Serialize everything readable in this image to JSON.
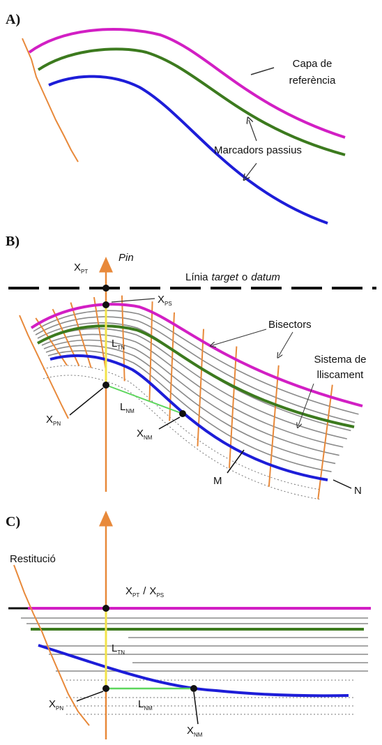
{
  "panel_a": {
    "label": "A)",
    "reference_layer": [
      "Capa de",
      "referència"
    ],
    "passive_markers": "Marcadors passius"
  },
  "panel_b": {
    "label": "B)",
    "pin": "Pin",
    "x_pt": {
      "base": "X",
      "sub": "PT"
    },
    "datum_line": [
      "Línia",
      "target",
      "o",
      "datum"
    ],
    "x_ps": {
      "base": "X",
      "sub": "PS"
    },
    "bisectors": "Bisectors",
    "slip_system": [
      "Sistema de",
      "lliscament"
    ],
    "l_tn": {
      "base": "L",
      "sub": "TN"
    },
    "l_nm": {
      "base": "L",
      "sub": "NM"
    },
    "x_pn": {
      "base": "X",
      "sub": "PN"
    },
    "x_nm": {
      "base": "X",
      "sub": "NM"
    },
    "m": "M",
    "n": "N"
  },
  "panel_c": {
    "label": "C)",
    "restitution": "Restitució",
    "x_pt_ps": {
      "first": {
        "base": "X",
        "sub": "PT"
      },
      "separator": "/",
      "second": {
        "base": "X",
        "sub": "PS"
      }
    },
    "l_tn": {
      "base": "L",
      "sub": "TN"
    },
    "x_pn": {
      "base": "X",
      "sub": "PN"
    },
    "l_nm": {
      "base": "L",
      "sub": "NM"
    },
    "x_nm": {
      "base": "X",
      "sub": "NM"
    }
  }
}
